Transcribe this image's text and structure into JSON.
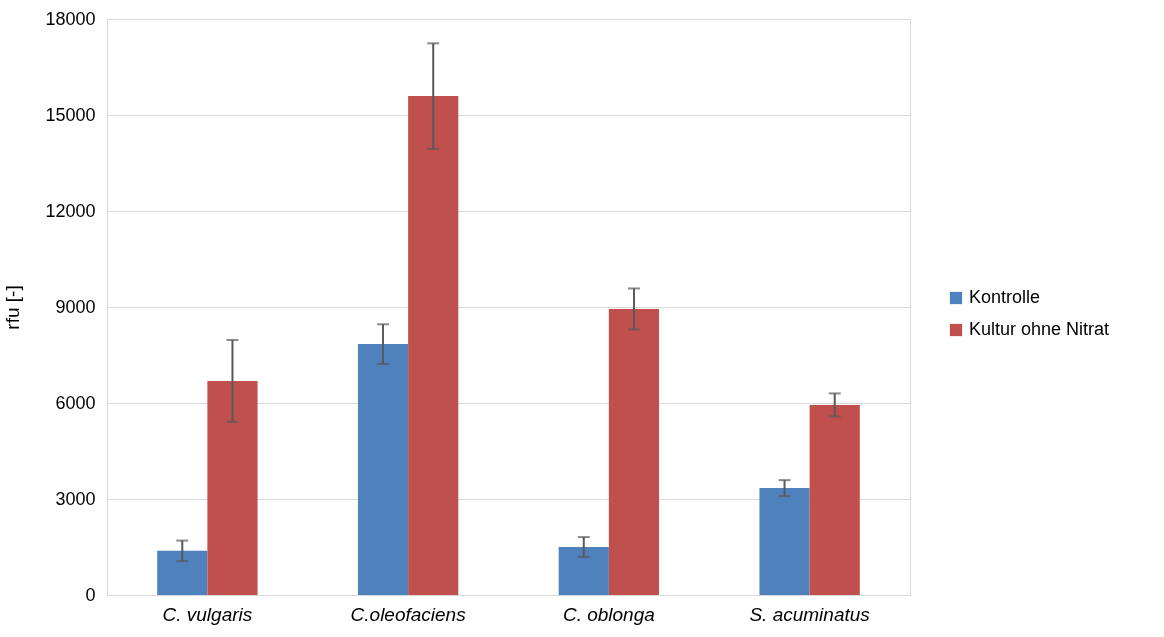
{
  "chart_data": {
    "type": "bar",
    "ylabel": "rfu [-]",
    "categories": [
      "C. vulgaris",
      "C.oleofaciens",
      "C. oblonga",
      "S. acuminatus"
    ],
    "series": [
      {
        "name": "Kontrolle",
        "color": "#4f81bd",
        "values": [
          1380,
          7840,
          1500,
          3340
        ],
        "errors": [
          320,
          620,
          310,
          250
        ]
      },
      {
        "name": "Kultur ohne Nitrat",
        "color": "#c0504d",
        "values": [
          6690,
          15590,
          8940,
          5940
        ],
        "errors": [
          1280,
          1650,
          640,
          360
        ]
      }
    ],
    "ylim": [
      0,
      18000
    ],
    "yticks": [
      0,
      3000,
      6000,
      9000,
      12000,
      15000,
      18000
    ],
    "grid": "y",
    "legend": "right"
  }
}
